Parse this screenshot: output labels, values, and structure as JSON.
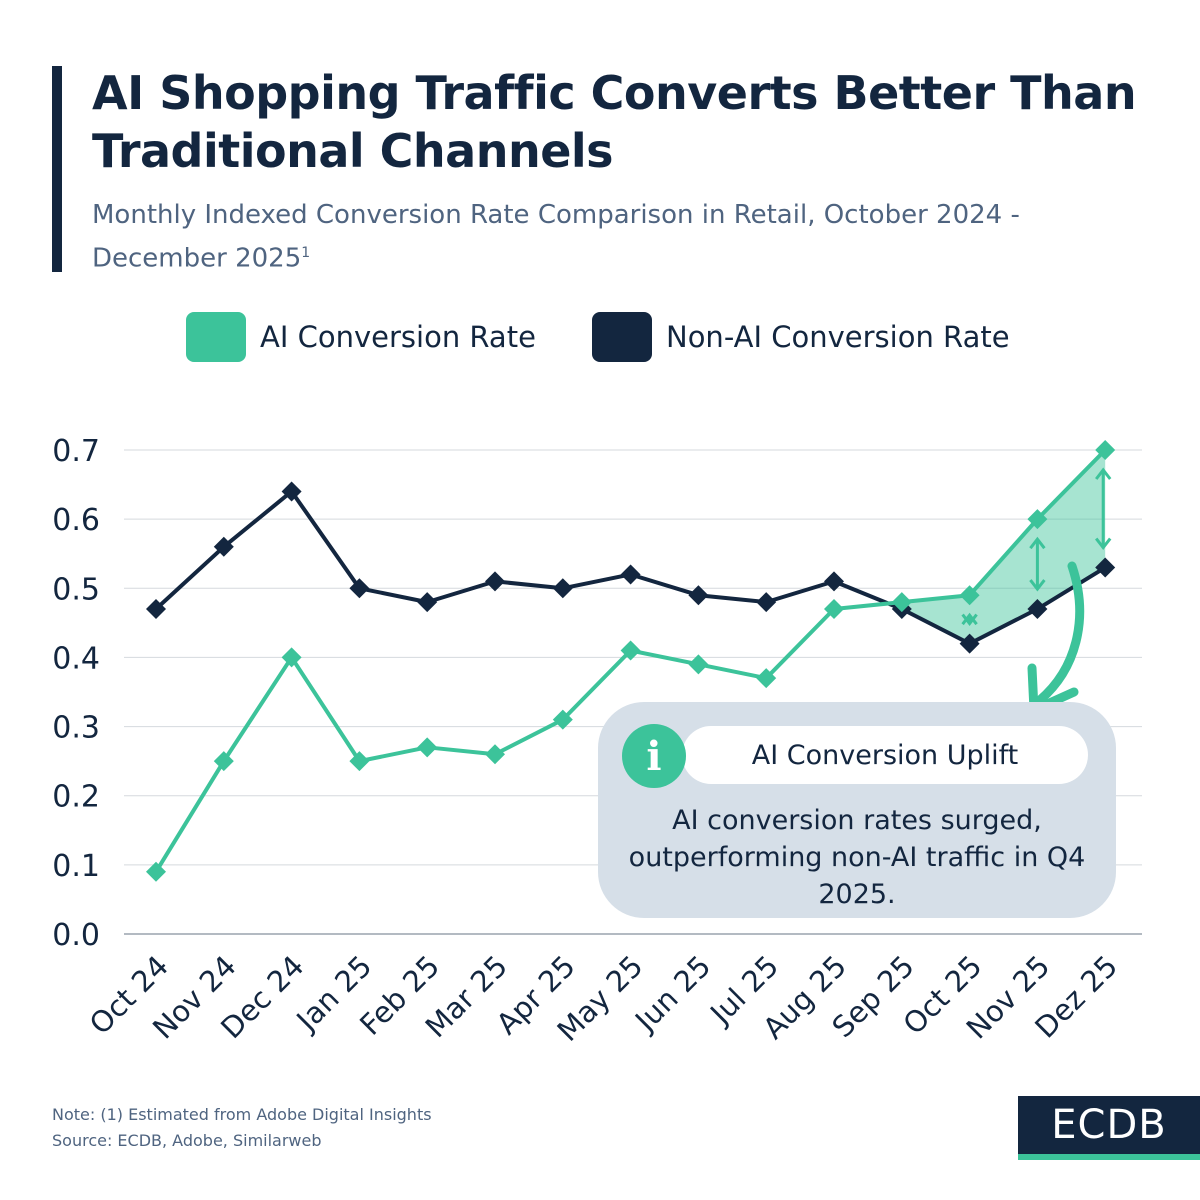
{
  "header": {
    "title": "AI Shopping Traffic Converts Better Than Traditional Channels",
    "subtitle": "Monthly Indexed Conversion Rate Comparison in Retail, October 2024 - December 2025",
    "subtitle_footnote_mark": "1"
  },
  "legend": {
    "items": [
      {
        "label": "AI Conversion Rate",
        "color": "#3cc39a"
      },
      {
        "label": "Non-AI Conversion Rate",
        "color": "#13263f"
      }
    ]
  },
  "chart_data": {
    "type": "line",
    "title": "AI Shopping Traffic Converts Better Than Traditional Channels",
    "xlabel": "",
    "ylabel": "",
    "categories": [
      "Oct 24",
      "Nov 24",
      "Dec 24",
      "Jan 25",
      "Feb 25",
      "Mar 25",
      "Apr 25",
      "May 25",
      "Jun 25",
      "Jul 25",
      "Aug 25",
      "Sep 25",
      "Oct 25",
      "Nov 25",
      "Dez 25"
    ],
    "series": [
      {
        "name": "AI Conversion Rate",
        "color": "#3cc39a",
        "values": [
          0.09,
          0.25,
          0.4,
          0.25,
          0.27,
          0.26,
          0.31,
          0.41,
          0.39,
          0.37,
          0.47,
          0.48,
          0.49,
          0.6,
          0.7
        ]
      },
      {
        "name": "Non-AI Conversion Rate",
        "color": "#13263f",
        "values": [
          0.47,
          0.56,
          0.64,
          0.5,
          0.48,
          0.51,
          0.5,
          0.52,
          0.49,
          0.48,
          0.51,
          0.47,
          0.42,
          0.47,
          0.53
        ]
      }
    ],
    "ylim": [
      0,
      0.7
    ],
    "yticks": [
      "0.0",
      "0.1",
      "0.2",
      "0.3",
      "0.4",
      "0.5",
      "0.6",
      "0.7"
    ],
    "grid": true,
    "legend_position": "top-center",
    "highlight": {
      "from_category": "Sep 25",
      "to_category": "Dez 25",
      "fill_color": "#3cc39a"
    }
  },
  "callout": {
    "title": "AI Conversion Uplift",
    "icon": "info-icon",
    "text": "AI conversion rates surged, outperforming non-AI traffic in Q4 2025.",
    "background": "#d6dfe8"
  },
  "footer": {
    "note": "Note: (1) Estimated from Adobe Digital Insights",
    "source": "Source: ECDB, Adobe, Similarweb",
    "logo": "ECDB"
  }
}
